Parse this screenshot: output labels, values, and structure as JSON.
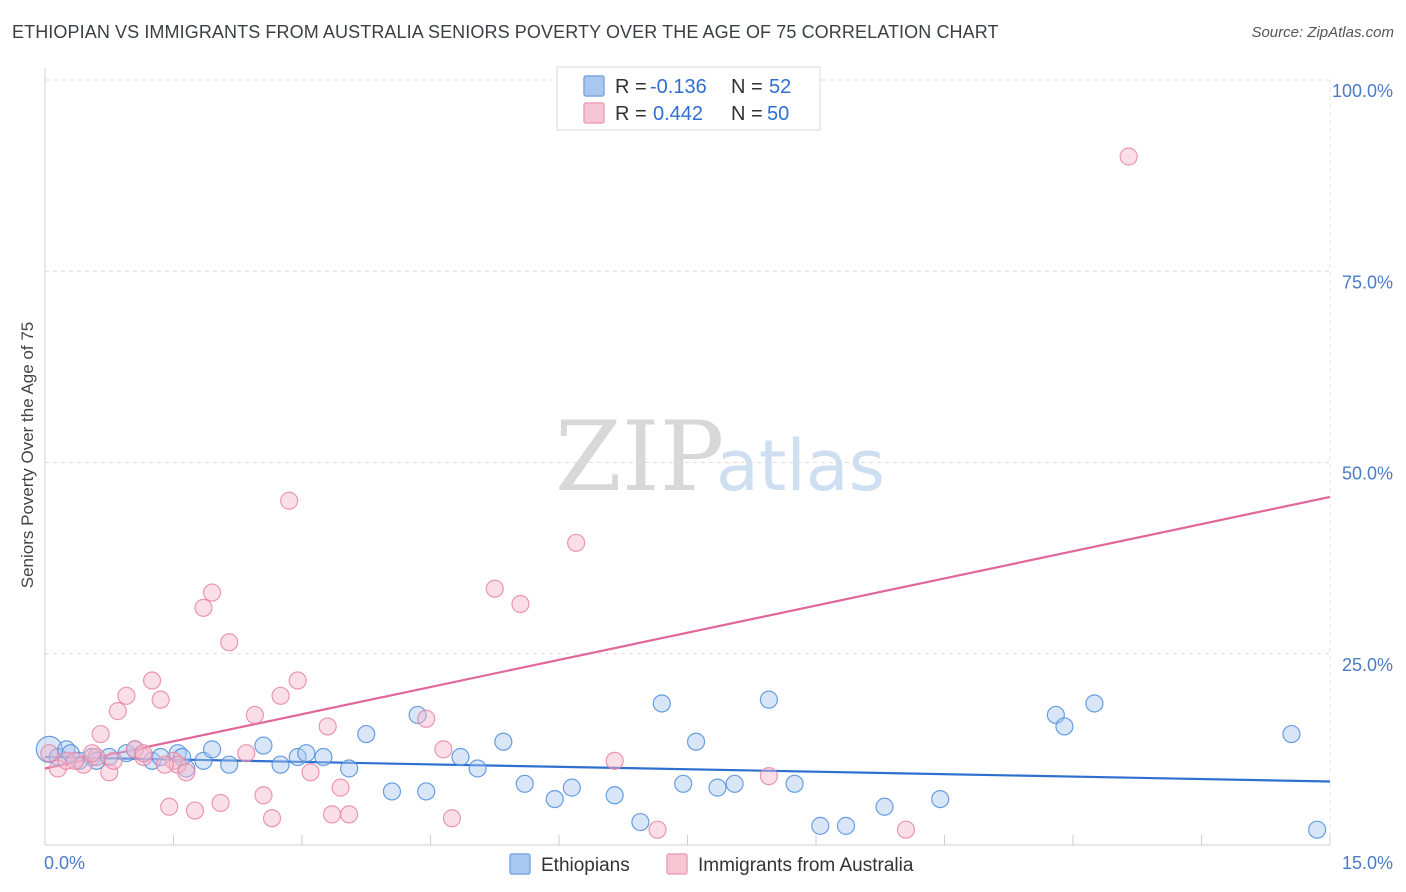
{
  "header": {
    "title": "ETHIOPIAN VS IMMIGRANTS FROM AUSTRALIA SENIORS POVERTY OVER THE AGE OF 75 CORRELATION CHART",
    "source": "Source: ZipAtlas.com"
  },
  "watermark": {
    "zip": "ZIP",
    "atlas": "atlas"
  },
  "legend": {
    "r_label": "R =",
    "n_label": "N =",
    "rows": [
      {
        "r": "-0.136",
        "n": "52",
        "color": "#a9c8f0"
      },
      {
        "r": "0.442",
        "n": "50",
        "color": "#f7b9cc"
      }
    ]
  },
  "bottom_legend": [
    "Ethiopians",
    "Immigrants from Australia"
  ],
  "chart_data": {
    "type": "scatter",
    "xlabel": "",
    "ylabel": "Seniors Poverty Over the Age of 75",
    "xlim": [
      0,
      15
    ],
    "ylim": [
      0,
      100
    ],
    "x_tick_labels": [
      {
        "value": 0,
        "label": "0.0%"
      },
      {
        "value": 15,
        "label": "15.0%"
      }
    ],
    "y_tick_labels": [
      {
        "value": 25,
        "label": "25.0%"
      },
      {
        "value": 50,
        "label": "50.0%"
      },
      {
        "value": 75,
        "label": "75.0%"
      },
      {
        "value": 100,
        "label": "100.0%"
      }
    ],
    "grid": true,
    "series": [
      {
        "name": "Ethiopians",
        "color": "#4f8fdc",
        "fill": "#a9c8f0",
        "trend": {
          "x": [
            0,
            15
          ],
          "y": [
            11.5,
            8.3
          ],
          "color": "#2e6fd0"
        },
        "points": [
          [
            0.05,
            12.5
          ],
          [
            0.15,
            11.5
          ],
          [
            0.25,
            12.5
          ],
          [
            0.4,
            11.0
          ],
          [
            0.55,
            11.5
          ],
          [
            0.6,
            11.0
          ],
          [
            0.95,
            12.0
          ],
          [
            1.05,
            12.5
          ],
          [
            1.25,
            11.0
          ],
          [
            1.35,
            11.5
          ],
          [
            1.55,
            12.0
          ],
          [
            1.65,
            10.0
          ],
          [
            1.85,
            11.0
          ],
          [
            1.95,
            12.5
          ],
          [
            2.15,
            10.5
          ],
          [
            2.55,
            13.0
          ],
          [
            2.75,
            10.5
          ],
          [
            2.95,
            11.5
          ],
          [
            3.05,
            12.0
          ],
          [
            3.25,
            11.5
          ],
          [
            3.55,
            10.0
          ],
          [
            3.75,
            14.5
          ],
          [
            4.05,
            7.0
          ],
          [
            4.35,
            17.0
          ],
          [
            4.45,
            7.0
          ],
          [
            4.85,
            11.5
          ],
          [
            5.05,
            10.0
          ],
          [
            5.35,
            13.5
          ],
          [
            5.6,
            8.0
          ],
          [
            5.95,
            6.0
          ],
          [
            6.15,
            7.5
          ],
          [
            6.65,
            6.5
          ],
          [
            6.95,
            3.0
          ],
          [
            7.2,
            18.5
          ],
          [
            7.45,
            8.0
          ],
          [
            7.6,
            13.5
          ],
          [
            7.85,
            7.5
          ],
          [
            8.05,
            8.0
          ],
          [
            8.45,
            19.0
          ],
          [
            8.75,
            8.0
          ],
          [
            9.05,
            2.5
          ],
          [
            9.35,
            2.5
          ],
          [
            9.8,
            5.0
          ],
          [
            10.45,
            6.0
          ],
          [
            11.8,
            17.0
          ],
          [
            11.9,
            15.5
          ],
          [
            12.25,
            18.5
          ],
          [
            14.55,
            14.5
          ],
          [
            14.85,
            2.0
          ],
          [
            0.3,
            12.0
          ],
          [
            1.6,
            11.5
          ],
          [
            0.75,
            11.5
          ]
        ]
      },
      {
        "name": "Immigrants from Australia",
        "color": "#e886a6",
        "fill": "#f7b9cc",
        "trend": {
          "x": [
            0,
            15
          ],
          "y": [
            10.0,
            45.5
          ],
          "color": "#e0679a"
        },
        "points": [
          [
            0.05,
            12.0
          ],
          [
            0.15,
            10.0
          ],
          [
            0.25,
            11.0
          ],
          [
            0.45,
            10.5
          ],
          [
            0.6,
            11.5
          ],
          [
            0.65,
            14.5
          ],
          [
            0.75,
            9.5
          ],
          [
            0.8,
            11.0
          ],
          [
            0.85,
            17.5
          ],
          [
            0.95,
            19.5
          ],
          [
            1.05,
            12.5
          ],
          [
            1.15,
            11.5
          ],
          [
            1.25,
            21.5
          ],
          [
            1.35,
            19.0
          ],
          [
            1.45,
            5.0
          ],
          [
            1.5,
            11.0
          ],
          [
            1.55,
            10.5
          ],
          [
            1.65,
            9.5
          ],
          [
            1.75,
            4.5
          ],
          [
            1.85,
            31.0
          ],
          [
            1.95,
            33.0
          ],
          [
            2.05,
            5.5
          ],
          [
            2.15,
            26.5
          ],
          [
            2.35,
            12.0
          ],
          [
            2.45,
            17.0
          ],
          [
            2.55,
            6.5
          ],
          [
            2.65,
            3.5
          ],
          [
            2.75,
            19.5
          ],
          [
            2.85,
            45.0
          ],
          [
            2.95,
            21.5
          ],
          [
            3.1,
            9.5
          ],
          [
            3.3,
            15.5
          ],
          [
            3.35,
            4.0
          ],
          [
            3.45,
            7.5
          ],
          [
            3.55,
            4.0
          ],
          [
            4.45,
            16.5
          ],
          [
            4.65,
            12.5
          ],
          [
            4.75,
            3.5
          ],
          [
            5.25,
            33.5
          ],
          [
            5.55,
            31.5
          ],
          [
            6.2,
            39.5
          ],
          [
            6.65,
            11.0
          ],
          [
            7.15,
            2.0
          ],
          [
            8.45,
            9.0
          ],
          [
            10.05,
            2.0
          ],
          [
            12.65,
            90.0
          ],
          [
            0.35,
            11.0
          ],
          [
            0.55,
            12.0
          ],
          [
            1.15,
            12.0
          ],
          [
            1.4,
            10.5
          ]
        ]
      }
    ]
  }
}
